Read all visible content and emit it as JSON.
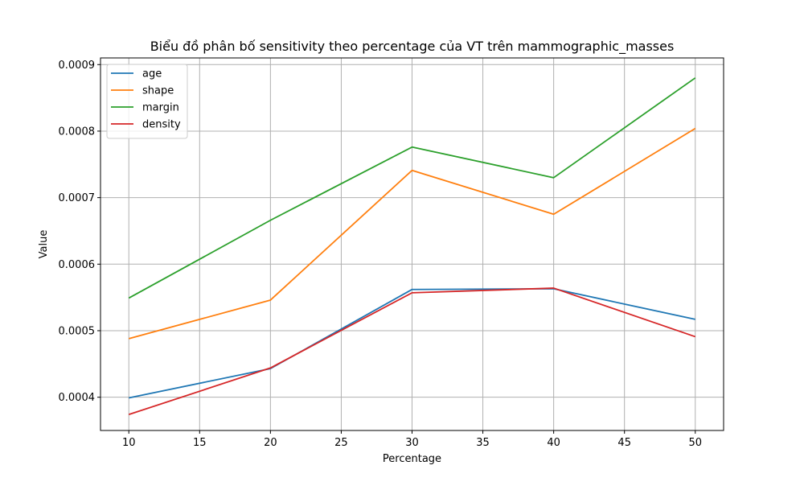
{
  "chart_data": {
    "type": "line",
    "title": "Biểu đồ phân bố sensitivity theo percentage của VT trên mammographic_masses",
    "xlabel": "Percentage",
    "ylabel": "Value",
    "x": [
      10,
      20,
      30,
      40,
      50
    ],
    "xticks": [
      10,
      15,
      20,
      25,
      30,
      35,
      40,
      45,
      50
    ],
    "xtick_labels": [
      "10",
      "15",
      "20",
      "25",
      "30",
      "35",
      "40",
      "45",
      "50"
    ],
    "yticks": [
      0.0004,
      0.0005,
      0.0006,
      0.0007,
      0.0008,
      0.0009
    ],
    "ytick_labels": [
      "0.0004",
      "0.0005",
      "0.0006",
      "0.0007",
      "0.0008",
      "0.0009"
    ],
    "xlim": [
      8,
      52
    ],
    "ylim": [
      0.00035,
      0.00091
    ],
    "grid": true,
    "legend_position": "top-left",
    "series": [
      {
        "name": "age",
        "color": "#1f77b4",
        "values": [
          0.000399,
          0.000443,
          0.000562,
          0.000563,
          0.000517
        ]
      },
      {
        "name": "shape",
        "color": "#ff7f0e",
        "values": [
          0.000488,
          0.000546,
          0.000741,
          0.000675,
          0.000804
        ]
      },
      {
        "name": "margin",
        "color": "#2ca02c",
        "values": [
          0.000549,
          0.000666,
          0.000776,
          0.00073,
          0.00088
        ]
      },
      {
        "name": "density",
        "color": "#d62728",
        "values": [
          0.000374,
          0.000444,
          0.000557,
          0.000564,
          0.000491
        ]
      }
    ]
  }
}
